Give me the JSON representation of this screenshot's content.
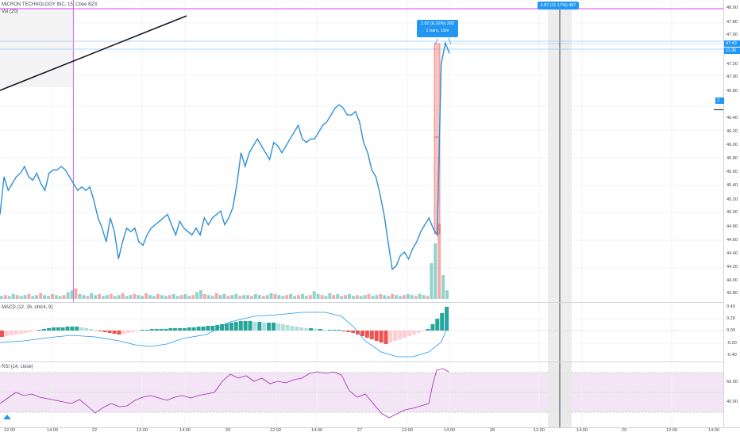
{
  "header": {
    "symbol_line": "MICRON TECHNOLOGY INC, 15, Cboe BZX",
    "volume_label": "Vol (20)"
  },
  "macd_label": "MACD (12, 26, ohlc4, 9)",
  "rsi_label": "RSI (14, close)",
  "price_axis": {
    "ticks": [
      "48.00",
      "47.80",
      "47.60",
      "47.20",
      "47.00",
      "46.80",
      "46.60",
      "46.40",
      "46.20",
      "46.00",
      "45.80",
      "45.60",
      "45.40",
      "45.20",
      "45.00",
      "44.80",
      "44.60",
      "44.40",
      "44.20",
      "44.00",
      "43.80"
    ],
    "badge_price": "47.49",
    "badge_time": "11:36",
    "badge_partial": "2."
  },
  "macd_axis": {
    "ticks": [
      "0.40",
      "0.20",
      "0.00",
      "-0.20",
      "-0.40"
    ]
  },
  "rsi_axis": {
    "ticks": [
      "60.00",
      "40.00"
    ]
  },
  "time_axis": {
    "labels": [
      "12:00",
      "14:00",
      "22",
      "12:00",
      "14:00",
      "26",
      "12:00",
      "14:00",
      "27",
      "12:00",
      "14:00",
      "28",
      "12:00",
      "14:00",
      "29",
      "12:00",
      "14:00"
    ]
  },
  "tooltips": {
    "measure_line1": "2.82 (6.32%) 282",
    "measure_line2": "1 bars, 15m",
    "top_range": "4.87 (11.17%) 487"
  },
  "colors": {
    "line": "#2e8fd6",
    "up": "#26a69a",
    "down": "#ef5350",
    "pink": "#e040fb",
    "accent": "#2196f3",
    "rsi_band": "#f3e5f5"
  },
  "chart_data": {
    "type": "line",
    "price_series": [
      45.0,
      45.55,
      45.35,
      45.45,
      45.55,
      45.6,
      45.7,
      45.55,
      45.5,
      45.6,
      45.45,
      45.35,
      45.6,
      45.65,
      45.65,
      45.7,
      45.65,
      45.55,
      45.45,
      45.35,
      45.4,
      45.35,
      45.4,
      45.2,
      44.95,
      44.8,
      44.6,
      44.95,
      44.75,
      44.35,
      44.6,
      44.8,
      44.75,
      44.8,
      44.6,
      44.55,
      44.7,
      44.8,
      44.85,
      44.9,
      44.95,
      45.0,
      44.85,
      44.7,
      44.9,
      44.8,
      44.75,
      44.7,
      44.8,
      44.7,
      44.95,
      44.85,
      44.95,
      45.0,
      45.05,
      44.85,
      44.95,
      45.1,
      45.45,
      45.9,
      45.7,
      45.9,
      46.0,
      46.1,
      46.0,
      45.9,
      45.8,
      46.05,
      46.0,
      45.9,
      46.0,
      46.1,
      46.2,
      46.3,
      46.1,
      46.05,
      46.1,
      46.1,
      46.2,
      46.3,
      46.35,
      46.45,
      46.55,
      46.6,
      46.55,
      46.45,
      46.45,
      46.5,
      46.35,
      46.05,
      45.9,
      45.65,
      45.55,
      45.3,
      45.0,
      44.6,
      44.2,
      44.25,
      44.4,
      44.45,
      44.35,
      44.5,
      44.6,
      44.75,
      44.85,
      44.95,
      44.8,
      44.7,
      47.2,
      47.5,
      47.35
    ]
  }
}
